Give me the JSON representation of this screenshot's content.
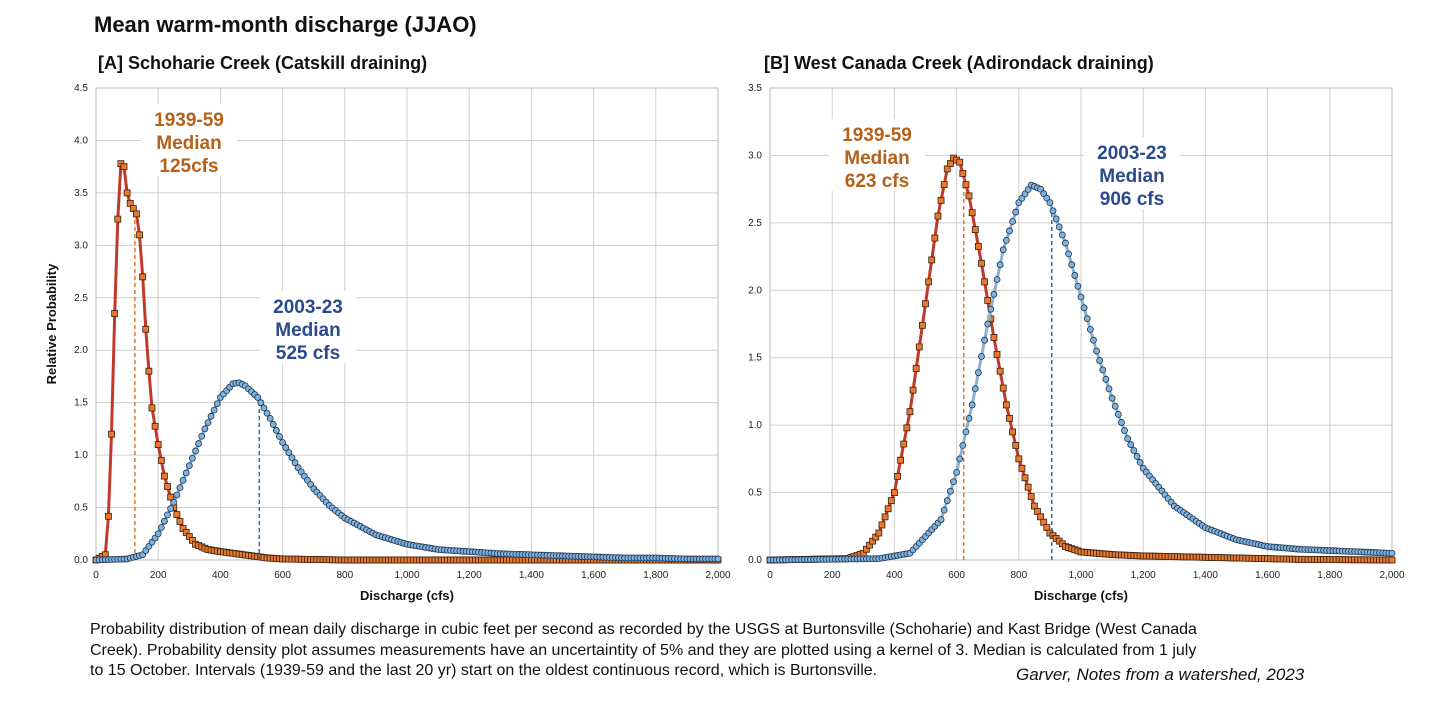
{
  "main_title": "Mean warm-month discharge (JJAO)",
  "caption": {
    "line1": "Probability distribution of mean daily discharge in cubic feet per second as recorded by the USGS at Burtonsville (Schoharie) and Kast Bridge (West Canada",
    "line2": "Creek).  Probability density plot assumes measurements have an uncertaintity of 5% and they are plotted using a kernel of 3.  Median is calculated from 1 july",
    "line3": "to 15 October. Intervals (1939-59 and the last 20 yr) start on the oldest continuous record, which is Burtonsville."
  },
  "credit": "Garver, Notes from a watershed, 2023",
  "colors": {
    "early": "#b5611a",
    "early_line": "#c03a2b",
    "early_marker": "#e8792f",
    "recent": "#2a4a8c",
    "recent_line": "#8fb0c8",
    "recent_marker": "#7fb2dc",
    "grid": "#cfcfcf"
  },
  "chart_data": [
    {
      "type": "line",
      "title": "[A] Schoharie Creek (Catskill draining)",
      "xlabel": "Discharge (cfs)",
      "ylabel": "Relative Probability",
      "xlim": [
        0,
        2000
      ],
      "ylim": [
        0,
        4.5
      ],
      "xticks": [
        0,
        200,
        400,
        600,
        800,
        1000,
        1200,
        1400,
        1600,
        1800,
        2000
      ],
      "xtick_labels": [
        "0",
        "200",
        "400",
        "600",
        "800",
        "1,000",
        "1,200",
        "1,400",
        "1,600",
        "1,800",
        "2,000"
      ],
      "yticks": [
        0,
        0.5,
        1.0,
        1.5,
        2.0,
        2.5,
        3.0,
        3.5,
        4.0,
        4.5
      ],
      "ytick_labels": [
        "0.0",
        "0.5",
        "1.0",
        "1.5",
        "2.0",
        "2.5",
        "3.0",
        "3.5",
        "4.0",
        "4.5"
      ],
      "grid": true,
      "series": [
        {
          "label": [
            "1939-59",
            "Median",
            "125cfs"
          ],
          "median": 125,
          "points": [
            [
              0,
              0
            ],
            [
              30,
              0.05
            ],
            [
              45,
              0.6
            ],
            [
              55,
              1.8
            ],
            [
              65,
              2.9
            ],
            [
              75,
              3.6
            ],
            [
              82,
              3.85
            ],
            [
              90,
              3.75
            ],
            [
              100,
              3.5
            ],
            [
              110,
              3.4
            ],
            [
              120,
              3.35
            ],
            [
              130,
              3.3
            ],
            [
              140,
              3.1
            ],
            [
              150,
              2.7
            ],
            [
              160,
              2.2
            ],
            [
              170,
              1.8
            ],
            [
              180,
              1.45
            ],
            [
              200,
              1.1
            ],
            [
              220,
              0.8
            ],
            [
              250,
              0.5
            ],
            [
              280,
              0.3
            ],
            [
              320,
              0.15
            ],
            [
              360,
              0.1
            ],
            [
              400,
              0.08
            ],
            [
              450,
              0.06
            ],
            [
              500,
              0.04
            ],
            [
              550,
              0.02
            ],
            [
              600,
              0.01
            ],
            [
              700,
              0.005
            ],
            [
              800,
              0
            ],
            [
              2000,
              0
            ]
          ]
        },
        {
          "label": [
            "2003-23",
            "Median",
            "525 cfs"
          ],
          "median": 525,
          "points": [
            [
              0,
              0
            ],
            [
              100,
              0.01
            ],
            [
              150,
              0.05
            ],
            [
              200,
              0.25
            ],
            [
              250,
              0.55
            ],
            [
              300,
              0.9
            ],
            [
              350,
              1.25
            ],
            [
              400,
              1.55
            ],
            [
              440,
              1.68
            ],
            [
              460,
              1.69
            ],
            [
              480,
              1.66
            ],
            [
              520,
              1.55
            ],
            [
              560,
              1.35
            ],
            [
              600,
              1.12
            ],
            [
              650,
              0.88
            ],
            [
              700,
              0.68
            ],
            [
              750,
              0.52
            ],
            [
              800,
              0.4
            ],
            [
              900,
              0.24
            ],
            [
              1000,
              0.15
            ],
            [
              1100,
              0.1
            ],
            [
              1200,
              0.08
            ],
            [
              1300,
              0.06
            ],
            [
              1400,
              0.05
            ],
            [
              1500,
              0.04
            ],
            [
              1600,
              0.03
            ],
            [
              1700,
              0.02
            ],
            [
              1800,
              0.02
            ],
            [
              1900,
              0.01
            ],
            [
              2000,
              0.01
            ]
          ]
        }
      ]
    },
    {
      "type": "line",
      "title": "[B] West Canada Creek (Adirondack draining)",
      "xlabel": "Discharge (cfs)",
      "ylabel": "",
      "xlim": [
        0,
        2000
      ],
      "ylim": [
        0,
        3.5
      ],
      "xticks": [
        0,
        200,
        400,
        600,
        800,
        1000,
        1200,
        1400,
        1600,
        1800,
        2000
      ],
      "xtick_labels": [
        "0",
        "200",
        "400",
        "600",
        "800",
        "1,000",
        "1,200",
        "1,400",
        "1,600",
        "1,800",
        "2,000"
      ],
      "yticks": [
        0,
        0.5,
        1.0,
        1.5,
        2.0,
        2.5,
        3.0,
        3.5
      ],
      "ytick_labels": [
        "0.0",
        "0.5",
        "1.0",
        "1.5",
        "2.0",
        "2.5",
        "3.0",
        "3.5"
      ],
      "grid": true,
      "series": [
        {
          "label": [
            "1939-59",
            "Median",
            "623 cfs"
          ],
          "median": 623,
          "points": [
            [
              0,
              0
            ],
            [
              250,
              0.01
            ],
            [
              300,
              0.05
            ],
            [
              350,
              0.2
            ],
            [
              400,
              0.5
            ],
            [
              450,
              1.1
            ],
            [
              500,
              1.9
            ],
            [
              540,
              2.55
            ],
            [
              570,
              2.9
            ],
            [
              590,
              2.98
            ],
            [
              610,
              2.95
            ],
            [
              640,
              2.7
            ],
            [
              680,
              2.2
            ],
            [
              720,
              1.65
            ],
            [
              760,
              1.15
            ],
            [
              800,
              0.75
            ],
            [
              850,
              0.4
            ],
            [
              900,
              0.2
            ],
            [
              950,
              0.1
            ],
            [
              1000,
              0.06
            ],
            [
              1100,
              0.04
            ],
            [
              1200,
              0.03
            ],
            [
              1300,
              0.025
            ],
            [
              1400,
              0.02
            ],
            [
              1500,
              0.015
            ],
            [
              1600,
              0.01
            ],
            [
              1700,
              0.005
            ],
            [
              1800,
              0.003
            ],
            [
              2000,
              0
            ]
          ]
        },
        {
          "label": [
            "2003-23",
            "Median",
            "906 cfs"
          ],
          "median": 906,
          "points": [
            [
              0,
              0
            ],
            [
              350,
              0.01
            ],
            [
              450,
              0.05
            ],
            [
              550,
              0.3
            ],
            [
              600,
              0.65
            ],
            [
              650,
              1.15
            ],
            [
              700,
              1.75
            ],
            [
              750,
              2.3
            ],
            [
              800,
              2.65
            ],
            [
              840,
              2.78
            ],
            [
              870,
              2.75
            ],
            [
              900,
              2.65
            ],
            [
              950,
              2.35
            ],
            [
              1000,
              1.95
            ],
            [
              1050,
              1.55
            ],
            [
              1100,
              1.2
            ],
            [
              1150,
              0.9
            ],
            [
              1200,
              0.68
            ],
            [
              1300,
              0.4
            ],
            [
              1400,
              0.24
            ],
            [
              1500,
              0.15
            ],
            [
              1600,
              0.1
            ],
            [
              1700,
              0.08
            ],
            [
              1800,
              0.07
            ],
            [
              1900,
              0.06
            ],
            [
              2000,
              0.05
            ]
          ]
        }
      ]
    }
  ]
}
